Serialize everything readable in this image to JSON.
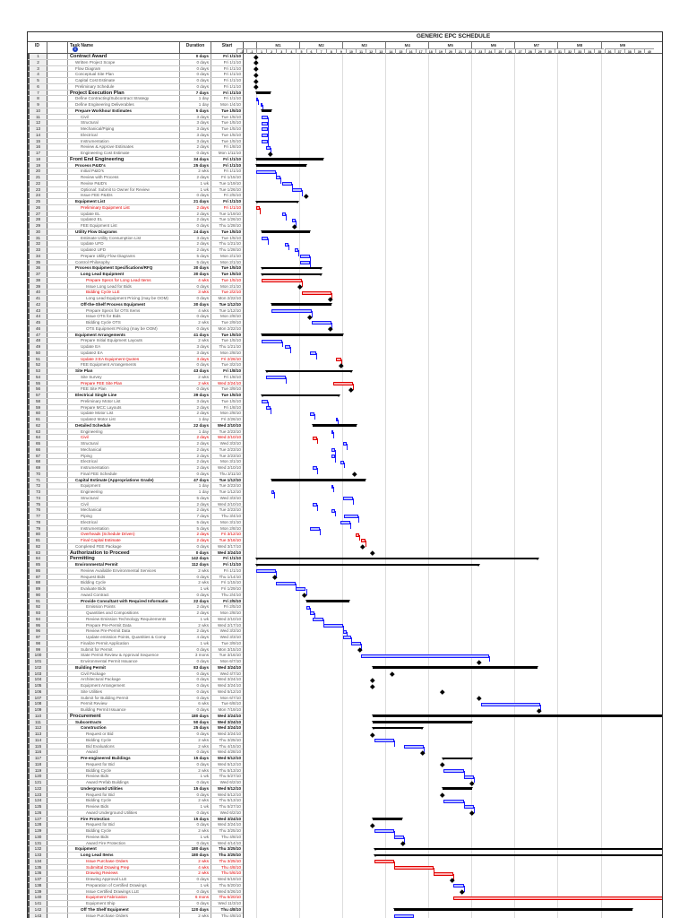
{
  "chart_data": {
    "type": "gantt",
    "title": "GENERIC EPC SCHEDULE",
    "columns": {
      "id": "ID",
      "task_name": "Task Name",
      "duration": "Duration",
      "start": "Start"
    },
    "months": [
      "M1",
      "M2",
      "M3",
      "M4",
      "M5",
      "M6",
      "M7",
      "M8",
      "M9"
    ],
    "weeks": [
      -2,
      -1,
      1,
      2,
      3,
      4,
      5,
      6,
      7,
      8,
      9,
      10,
      11,
      12,
      13,
      14,
      15,
      16,
      17,
      18,
      19,
      20,
      21,
      22,
      23,
      24,
      25,
      26,
      27,
      28,
      29,
      30,
      31,
      32,
      33,
      34,
      35,
      36,
      37,
      38,
      39,
      40
    ],
    "colors": {
      "task": "#1a1aff",
      "critical": "#e00000",
      "summary": "#000000"
    },
    "row_fields": [
      "id",
      "name",
      "duration",
      "start",
      "outline_level",
      "kind"
    ],
    "tasks": [
      [
        1,
        "Contract Award",
        "0 days",
        "Fri 1/1/10",
        0,
        "s"
      ],
      [
        2,
        "Written Project Scope",
        "0 days",
        "Fri 1/1/10",
        1,
        ""
      ],
      [
        3,
        "Flow Diagram",
        "0 days",
        "Fri 1/1/10",
        1,
        ""
      ],
      [
        4,
        "Conceptual Site Plan",
        "0 days",
        "Fri 1/1/10",
        1,
        ""
      ],
      [
        5,
        "Capital Cost Estimate",
        "0 days",
        "Fri 1/1/10",
        1,
        ""
      ],
      [
        6,
        "Preliminary Schedule",
        "0 days",
        "Fri 1/1/10",
        1,
        ""
      ],
      [
        7,
        "Project Execution Plan",
        "7 days",
        "Fri 1/1/10",
        0,
        "s"
      ],
      [
        8,
        "Define Contracting/Subcontract Strategy",
        "1 day",
        "Fri 1/1/10",
        1,
        ""
      ],
      [
        9,
        "Define Engineering Deliverables",
        "1 day",
        "Mon 1/4/10",
        1,
        ""
      ],
      [
        10,
        "Prepare Workhour Estimates",
        "5 days",
        "Tue 1/5/10",
        1,
        "s"
      ],
      [
        11,
        "Civil",
        "3 days",
        "Tue 1/5/10",
        2,
        ""
      ],
      [
        12,
        "Structural",
        "3 days",
        "Tue 1/5/10",
        2,
        ""
      ],
      [
        13,
        "Mechanical/Piping",
        "3 days",
        "Tue 1/5/10",
        2,
        ""
      ],
      [
        14,
        "Electrical",
        "3 days",
        "Tue 1/5/10",
        2,
        ""
      ],
      [
        15,
        "Instrumentation",
        "3 days",
        "Tue 1/5/10",
        2,
        ""
      ],
      [
        16,
        "Review & Approve Estimates",
        "2 days",
        "Fri 1/8/10",
        2,
        ""
      ],
      [
        17,
        "Engineering Cost Estimate",
        "0 days",
        "Mon 1/11/10",
        2,
        ""
      ],
      [
        18,
        "Front End Engineering",
        "34 days",
        "Fri 1/1/10",
        0,
        "s"
      ],
      [
        19,
        "Process P&ID's",
        "25 days",
        "Fri 1/1/10",
        1,
        "s"
      ],
      [
        20,
        "Initial P&ID's",
        "2 wks",
        "Fri 1/1/10",
        2,
        ""
      ],
      [
        21,
        "Review with Process",
        "2 days",
        "Fri 1/15/10",
        2,
        ""
      ],
      [
        22,
        "Revise P&ID's",
        "1 wk",
        "Tue 1/19/10",
        2,
        ""
      ],
      [
        23,
        "Optional: Submit to Owner for Review",
        "1 wk",
        "Tue 1/26/10",
        2,
        ""
      ],
      [
        24,
        "Issue FEE P&IDs",
        "0 days",
        "Fri 2/5/10",
        2,
        ""
      ],
      [
        25,
        "Equipment List",
        "21 days",
        "Fri 1/1/10",
        1,
        "s"
      ],
      [
        26,
        "Preliminary Equipment List",
        "2 days",
        "Fri 1/1/10",
        2,
        "c"
      ],
      [
        27,
        "Update EL",
        "2 days",
        "Tue 1/19/10",
        2,
        ""
      ],
      [
        28,
        "Update2 EL",
        "2 days",
        "Tue 1/26/10",
        2,
        ""
      ],
      [
        29,
        "FEE Equipment List",
        "0 days",
        "Thu 1/28/10",
        2,
        ""
      ],
      [
        30,
        "Utility Flow Diagrams",
        "24 days",
        "Tue 1/5/10",
        1,
        "s"
      ],
      [
        31,
        "Estimate Utility Consumption List",
        "3 days",
        "Tue 1/5/10",
        2,
        ""
      ],
      [
        32,
        "Update UFD",
        "2 days",
        "Thu 1/21/10",
        2,
        ""
      ],
      [
        33,
        "Update2 UFD",
        "2 days",
        "Thu 1/28/10",
        2,
        ""
      ],
      [
        34,
        "Prepare Utility Flow Diagrams",
        "5 days",
        "Mon 2/1/10",
        2,
        ""
      ],
      [
        35,
        "Control Philosophy",
        "5 days",
        "Mon 2/1/10",
        1,
        ""
      ],
      [
        36,
        "Process Equipment Specifications/RFQ",
        "30 days",
        "Tue 1/5/10",
        1,
        "s"
      ],
      [
        37,
        "Long Lead Equipment",
        "30 days",
        "Tue 1/5/10",
        2,
        "s"
      ],
      [
        38,
        "Prepare Specs for Long Lead Items",
        "4 wks",
        "Tue 1/5/10",
        3,
        "c"
      ],
      [
        39,
        "Issue Long Lead for Bids",
        "0 days",
        "Mon 2/1/10",
        3,
        ""
      ],
      [
        40,
        "Bidding Cycle LLE",
        "3 wks",
        "Tue 2/2/10",
        3,
        "c"
      ],
      [
        41,
        "Long Lead Equipment Pricing (may be OOM)",
        "0 days",
        "Mon 2/22/10",
        3,
        ""
      ],
      [
        42,
        "Off-the-Shelf Process Equipment",
        "30 days",
        "Tue 1/12/10",
        2,
        "s"
      ],
      [
        43,
        "Prepare Specs for OTS Items",
        "4 wks",
        "Tue 1/12/10",
        3,
        ""
      ],
      [
        44,
        "Issue OTS for Bids",
        "0 days",
        "Mon 2/8/10",
        3,
        ""
      ],
      [
        45,
        "Bidding Cycle OTS",
        "2 wks",
        "Tue 2/9/10",
        3,
        ""
      ],
      [
        46,
        "OTS Equipment Pricing (may be OOM)",
        "0 days",
        "Mon 2/22/10",
        3,
        ""
      ],
      [
        47,
        "Equipment Arrangements",
        "41 days",
        "Tue 1/5/10",
        1,
        "s"
      ],
      [
        48,
        "Prepare Initial Equipment Layouts",
        "2 wks",
        "Tue 1/5/10",
        2,
        ""
      ],
      [
        49,
        "Update EA",
        "3 days",
        "Thu 1/21/10",
        2,
        ""
      ],
      [
        50,
        "Update2 EA",
        "3 days",
        "Mon 2/8/10",
        2,
        ""
      ],
      [
        51,
        "Update 3 EA Equipment Quotes",
        "3 days",
        "Fri 2/26/10",
        2,
        "c"
      ],
      [
        52,
        "FEE Equipment Arrangements",
        "0 days",
        "Tue 3/2/10",
        2,
        ""
      ],
      [
        53,
        "Site Plan",
        "43 days",
        "Fri 1/8/10",
        1,
        "s"
      ],
      [
        54,
        "Site Survey",
        "2 wks",
        "Fri 1/8/10",
        2,
        ""
      ],
      [
        55,
        "Prepare FEE Site Plan",
        "2 wks",
        "Wed 2/24/10",
        2,
        "c"
      ],
      [
        56,
        "FEE Site Plan",
        "0 days",
        "Tue 3/9/10",
        2,
        ""
      ],
      [
        57,
        "Electrical Single Line",
        "39 days",
        "Tue 1/5/10",
        1,
        "s"
      ],
      [
        58,
        "Preliminary Motor List",
        "3 days",
        "Tue 1/5/10",
        2,
        ""
      ],
      [
        59,
        "Prepare MCC Layouts",
        "2 days",
        "Fri 1/8/10",
        2,
        ""
      ],
      [
        60,
        "Update Motor List",
        "2 days",
        "Mon 2/8/10",
        2,
        ""
      ],
      [
        61,
        "Update2 Motor List",
        "1 day",
        "Fri 2/26/10",
        2,
        ""
      ],
      [
        62,
        "Detailed Schedule",
        "22 days",
        "Wed 2/10/10",
        1,
        "s"
      ],
      [
        63,
        "Engineering",
        "1 day",
        "Tue 2/23/10",
        2,
        ""
      ],
      [
        64,
        "Civil",
        "2 days",
        "Wed 2/10/10",
        2,
        "c"
      ],
      [
        65,
        "Structural",
        "2 days",
        "Wed 3/3/10",
        2,
        ""
      ],
      [
        66,
        "Mechanical",
        "2 days",
        "Tue 2/23/10",
        2,
        ""
      ],
      [
        67,
        "Piping",
        "2 days",
        "Tue 2/23/10",
        2,
        ""
      ],
      [
        68,
        "Electrical",
        "2 days",
        "Mon 3/1/10",
        2,
        ""
      ],
      [
        69,
        "Instrumentation",
        "2 days",
        "Wed 2/10/10",
        2,
        ""
      ],
      [
        70,
        "Final FEE Schedule",
        "0 days",
        "Thu 3/11/10",
        2,
        ""
      ],
      [
        71,
        "Capital Estimate (Appropriations Grade)",
        "47 days",
        "Tue 1/12/10",
        1,
        "s"
      ],
      [
        72,
        "Equipment",
        "1 day",
        "Tue 2/23/10",
        2,
        ""
      ],
      [
        73,
        "Engineering",
        "1 day",
        "Tue 1/12/10",
        2,
        ""
      ],
      [
        74,
        "Structural",
        "5 days",
        "Wed 3/3/10",
        2,
        ""
      ],
      [
        75,
        "Civil",
        "2 days",
        "Wed 2/10/10",
        2,
        ""
      ],
      [
        76,
        "Mechanical",
        "2 days",
        "Tue 2/23/10",
        2,
        ""
      ],
      [
        77,
        "Piping",
        "7 days",
        "Thu 3/4/10",
        2,
        ""
      ],
      [
        78,
        "Electrical",
        "5 days",
        "Mon 3/1/10",
        2,
        ""
      ],
      [
        79,
        "Instrumentation",
        "5 days",
        "Mon 2/8/10",
        2,
        ""
      ],
      [
        80,
        "Overheads (Schedule Driven)",
        "2 days",
        "Fri 3/12/10",
        2,
        "c"
      ],
      [
        81,
        "Final Capital Estimate",
        "2 days",
        "Tue 3/16/10",
        2,
        "c"
      ],
      [
        82,
        "Completed FEE Package",
        "0 days",
        "Wed 3/17/10",
        1,
        ""
      ],
      [
        83,
        "Authorization to Proceed",
        "0 days",
        "Wed 3/24/10",
        0,
        "s"
      ],
      [
        84,
        "Permitting",
        "142 days",
        "Fri 1/1/10",
        0,
        "s"
      ],
      [
        85,
        "Environmental Permit",
        "112 days",
        "Fri 1/1/10",
        1,
        "s"
      ],
      [
        86,
        "Review Available Environmental Services",
        "2 wks",
        "Fri 1/1/10",
        2,
        ""
      ],
      [
        87,
        "Request Bids",
        "0 days",
        "Thu 1/14/10",
        2,
        ""
      ],
      [
        88,
        "Bidding Cycle",
        "2 wks",
        "Fri 1/15/10",
        2,
        ""
      ],
      [
        89,
        "Evaluate Bids",
        "1 wk",
        "Fri 1/29/10",
        2,
        ""
      ],
      [
        90,
        "Award Contract",
        "0 days",
        "Thu 2/4/10",
        2,
        ""
      ],
      [
        91,
        "Provide Consultant with Required Informatio",
        "22 days",
        "Fri 2/5/10",
        2,
        "s"
      ],
      [
        92,
        "Emission Points",
        "2 days",
        "Fri 2/5/10",
        3,
        ""
      ],
      [
        93,
        "Quantities and Compositions",
        "2 days",
        "Mon 2/8/10",
        3,
        ""
      ],
      [
        94,
        "Review Emission Technology Requirements",
        "1 wk",
        "Wed 2/10/10",
        3,
        ""
      ],
      [
        95,
        "Prepare Pre-Permit Data",
        "2 wks",
        "Wed 2/17/10",
        3,
        ""
      ],
      [
        96,
        "Review Pre-Permit Data",
        "2 days",
        "Wed 3/3/10",
        3,
        ""
      ],
      [
        97,
        "Update emission Points, Quantities & Comp",
        "4 days",
        "Wed 3/3/10",
        3,
        ""
      ],
      [
        98,
        "Finalize Permit Application",
        "1 wk",
        "Tue 3/9/10",
        2,
        ""
      ],
      [
        99,
        "Submit for Permit",
        "0 days",
        "Mon 3/15/10",
        2,
        ""
      ],
      [
        100,
        "State Permit Review & Approval Sequence",
        "3 mons",
        "Tue 3/16/10",
        2,
        ""
      ],
      [
        101,
        "Environmental Permit Issuance",
        "0 days",
        "Mon 6/7/10",
        2,
        ""
      ],
      [
        102,
        "Building Permit",
        "83 days",
        "Wed 3/24/10",
        1,
        "s"
      ],
      [
        103,
        "Civil Package",
        "0 days",
        "Wed 4/7/10",
        2,
        ""
      ],
      [
        104,
        "Architectural Package",
        "0 days",
        "Wed 3/24/10",
        2,
        ""
      ],
      [
        105,
        "Equipment Arrangement",
        "0 days",
        "Wed 3/24/10",
        2,
        ""
      ],
      [
        106,
        "Site Utilities",
        "0 days",
        "Wed 5/12/10",
        2,
        ""
      ],
      [
        107,
        "Submit for Building Permit",
        "0 days",
        "Mon 6/7/10",
        2,
        ""
      ],
      [
        108,
        "Permit Review",
        "6 wks",
        "Tue 6/8/10",
        2,
        ""
      ],
      [
        109,
        "Building Permit Issuance",
        "0 days",
        "Mon 7/19/10",
        2,
        ""
      ],
      [
        110,
        "Procurement",
        "180 days",
        "Wed 3/24/10",
        0,
        "s"
      ],
      [
        111,
        "Subcontracts",
        "50 days",
        "Wed 3/24/10",
        1,
        "s"
      ],
      [
        112,
        "Construction",
        "25 days",
        "Wed 3/24/10",
        2,
        "s"
      ],
      [
        113,
        "Request or Bid",
        "0 days",
        "Wed 3/24/10",
        3,
        ""
      ],
      [
        114,
        "Bidding Cycle",
        "2 wks",
        "Thu 3/25/10",
        3,
        ""
      ],
      [
        115,
        "Bid Evaluations",
        "2 wks",
        "Thu 4/15/10",
        3,
        ""
      ],
      [
        116,
        "Award",
        "0 days",
        "Wed 4/28/10",
        3,
        ""
      ],
      [
        117,
        "Pre-engineered Buildings",
        "15 days",
        "Wed 5/12/10",
        2,
        "s"
      ],
      [
        118,
        "Request for Bid",
        "0 days",
        "Wed 5/12/10",
        3,
        ""
      ],
      [
        119,
        "Bidding Cycle",
        "2 wks",
        "Thu 5/13/10",
        3,
        ""
      ],
      [
        120,
        "Review Bids",
        "1 wk",
        "Thu 5/27/10",
        3,
        ""
      ],
      [
        121,
        "Award Prefab Buildings",
        "0 days",
        "Wed 6/2/10",
        3,
        ""
      ],
      [
        122,
        "Underground Utilities",
        "15 days",
        "Wed 5/12/10",
        2,
        "s"
      ],
      [
        123,
        "Request for Bid",
        "0 days",
        "Wed 5/12/10",
        3,
        ""
      ],
      [
        124,
        "Bidding Cycle",
        "2 wks",
        "Thu 5/13/10",
        3,
        ""
      ],
      [
        125,
        "Review Bids",
        "1 wk",
        "Thu 5/27/10",
        3,
        ""
      ],
      [
        126,
        "Award Underground Utilities",
        "0 days",
        "Wed 6/2/10",
        3,
        ""
      ],
      [
        127,
        "Fire Protection",
        "15 days",
        "Wed 3/24/10",
        2,
        "s"
      ],
      [
        128,
        "Request for Bid",
        "0 days",
        "Wed 3/24/10",
        3,
        ""
      ],
      [
        129,
        "Bidding Cycle",
        "2 wks",
        "Thu 3/25/10",
        3,
        ""
      ],
      [
        130,
        "Review Bids",
        "1 wk",
        "Thu 4/8/10",
        3,
        ""
      ],
      [
        131,
        "Award Fire Protection",
        "0 days",
        "Wed 4/14/10",
        3,
        ""
      ],
      [
        132,
        "Equipment",
        "180 days",
        "Thu 3/25/10",
        1,
        "s"
      ],
      [
        133,
        "Long Lead Items",
        "180 days",
        "Thu 3/25/10",
        2,
        "s"
      ],
      [
        134,
        "Issue Purchase Orders",
        "2 wks",
        "Thu 3/25/10",
        3,
        "c"
      ],
      [
        135,
        "Submittal Drawing Prep",
        "4 wks",
        "Thu 4/8/10",
        3,
        "c"
      ],
      [
        136,
        "Drawing Reviews",
        "2 wks",
        "Thu 5/6/10",
        3,
        "c"
      ],
      [
        137,
        "Drawing Approval LLE",
        "0 days",
        "Wed 5/19/10",
        3,
        ""
      ],
      [
        138,
        "Preparation of Certified Drawings",
        "1 wk",
        "Thu 5/20/10",
        3,
        ""
      ],
      [
        139,
        "Issue Certified Drawings LLE",
        "0 days",
        "Wed 5/26/10",
        3,
        ""
      ],
      [
        140,
        "Equipment Fabrication",
        "6 mons",
        "Thu 5/20/10",
        3,
        "c"
      ],
      [
        141,
        "Equipment Ship",
        "0 days",
        "Wed 11/3/10",
        3,
        ""
      ],
      [
        142,
        "Off The Shelf Equipment",
        "120 days",
        "Thu 4/8/10",
        2,
        "s"
      ],
      [
        143,
        "Issue Purchase Orders",
        "2 wks",
        "Thu 4/8/10",
        3,
        ""
      ]
    ]
  }
}
